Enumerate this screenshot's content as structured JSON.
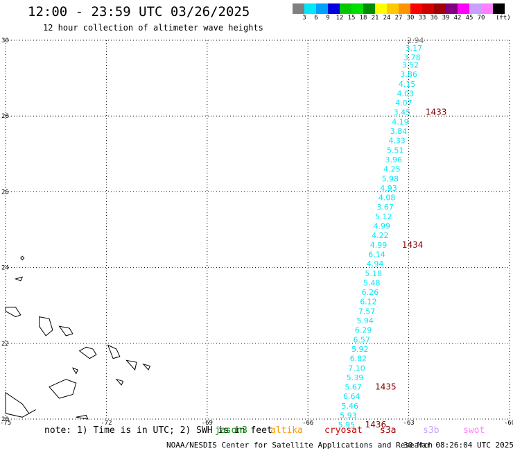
{
  "header": {
    "title": "12:00 - 23:59 UTC 03/26/2025",
    "subtitle": "12 hour collection of altimeter wave heights"
  },
  "colorbar": {
    "colors": [
      "#808080",
      "#00e8f8",
      "#00a0ff",
      "#0000e0",
      "#00c800",
      "#00e000",
      "#008c00",
      "#ffff00",
      "#ffc800",
      "#ff9600",
      "#ff0000",
      "#d00000",
      "#a00000",
      "#800080",
      "#ff00ff",
      "#c8a0ff",
      "#ff80ff",
      "#000000"
    ],
    "labels": [
      "3",
      "6",
      "9",
      "12",
      "15",
      "18",
      "21",
      "24",
      "27",
      "30",
      "33",
      "36",
      "39",
      "42",
      "45",
      "70"
    ],
    "unit": "(ft)"
  },
  "map": {
    "lat_labels": [
      "30",
      "28",
      "26",
      "24",
      "22",
      "20"
    ],
    "lon_labels": [
      "-75",
      "-72",
      "-69",
      "-66",
      "-63",
      "-60"
    ],
    "lat_range": [
      20,
      30
    ],
    "lon_range": [
      -75,
      -60
    ],
    "track_color": "#00e8f8",
    "pass_label_color": "#800000",
    "swh_points": [
      {
        "lat": 30.0,
        "lon": -62.8,
        "swh": "2.94",
        "color": "#808080"
      },
      {
        "lat": 29.8,
        "lon": -62.85,
        "swh": "3.17"
      },
      {
        "lat": 29.55,
        "lon": -62.9,
        "swh": "3.78"
      },
      {
        "lat": 29.35,
        "lon": -62.95,
        "swh": "3.52"
      },
      {
        "lat": 29.1,
        "lon": -63.0,
        "swh": "3.86"
      },
      {
        "lat": 28.85,
        "lon": -63.05,
        "swh": "4.15"
      },
      {
        "lat": 28.6,
        "lon": -63.1,
        "swh": "4.03"
      },
      {
        "lat": 28.35,
        "lon": -63.15,
        "swh": "4.07"
      },
      {
        "lat": 28.1,
        "lon": -63.2,
        "swh": "3.45"
      },
      {
        "lat": 27.85,
        "lon": -63.25,
        "swh": "4.19"
      },
      {
        "lat": 27.6,
        "lon": -63.3,
        "swh": "3.84"
      },
      {
        "lat": 27.35,
        "lon": -63.35,
        "swh": "4.33"
      },
      {
        "lat": 27.1,
        "lon": -63.4,
        "swh": "5.51"
      },
      {
        "lat": 26.85,
        "lon": -63.45,
        "swh": "3.96"
      },
      {
        "lat": 26.6,
        "lon": -63.5,
        "swh": "4.25"
      },
      {
        "lat": 26.35,
        "lon": -63.55,
        "swh": "5.98"
      },
      {
        "lat": 26.1,
        "lon": -63.6,
        "swh": "4.93"
      },
      {
        "lat": 25.85,
        "lon": -63.65,
        "swh": "4.08"
      },
      {
        "lat": 25.6,
        "lon": -63.7,
        "swh": "3.67"
      },
      {
        "lat": 25.35,
        "lon": -63.75,
        "swh": "5.12"
      },
      {
        "lat": 25.1,
        "lon": -63.8,
        "swh": "4.99"
      },
      {
        "lat": 24.85,
        "lon": -63.85,
        "swh": "4.22"
      },
      {
        "lat": 24.6,
        "lon": -63.9,
        "swh": "4.99"
      },
      {
        "lat": 24.35,
        "lon": -63.95,
        "swh": "6.14"
      },
      {
        "lat": 24.1,
        "lon": -64.0,
        "swh": "4.94"
      },
      {
        "lat": 23.85,
        "lon": -64.05,
        "swh": "5.18"
      },
      {
        "lat": 23.6,
        "lon": -64.1,
        "swh": "5.48"
      },
      {
        "lat": 23.35,
        "lon": -64.15,
        "swh": "6.26"
      },
      {
        "lat": 23.1,
        "lon": -64.2,
        "swh": "6.12"
      },
      {
        "lat": 22.85,
        "lon": -64.25,
        "swh": "7.57"
      },
      {
        "lat": 22.6,
        "lon": -64.3,
        "swh": "5.94"
      },
      {
        "lat": 22.35,
        "lon": -64.35,
        "swh": "6.29"
      },
      {
        "lat": 22.1,
        "lon": -64.4,
        "swh": "6.57"
      },
      {
        "lat": 21.85,
        "lon": -64.45,
        "swh": "5.92"
      },
      {
        "lat": 21.6,
        "lon": -64.5,
        "swh": "6.82"
      },
      {
        "lat": 21.35,
        "lon": -64.55,
        "swh": "7.10"
      },
      {
        "lat": 21.1,
        "lon": -64.6,
        "swh": "5.39"
      },
      {
        "lat": 20.85,
        "lon": -64.65,
        "swh": "5.67"
      },
      {
        "lat": 20.6,
        "lon": -64.7,
        "swh": "6.64"
      },
      {
        "lat": 20.35,
        "lon": -64.75,
        "swh": "5.46"
      },
      {
        "lat": 20.1,
        "lon": -64.8,
        "swh": "5.93"
      },
      {
        "lat": 19.85,
        "lon": -64.85,
        "swh": "5.95"
      }
    ],
    "pass_labels": [
      {
        "lat": 28.1,
        "lon": -62.5,
        "text": "1433"
      },
      {
        "lat": 24.6,
        "lon": -63.2,
        "text": "1434"
      },
      {
        "lat": 20.85,
        "lon": -64.0,
        "text": "1435"
      },
      {
        "lat": 19.85,
        "lon": -64.3,
        "text": "1436"
      }
    ],
    "land": [
      [
        [
          -74.5,
          24.2
        ],
        [
          -74.45,
          24.25
        ],
        [
          -74.5,
          24.3
        ],
        [
          -74.55,
          24.25
        ],
        [
          -74.5,
          24.2
        ]
      ],
      [
        [
          -74.7,
          23.7
        ],
        [
          -74.5,
          23.75
        ],
        [
          -74.55,
          23.65
        ],
        [
          -74.7,
          23.7
        ]
      ],
      [
        [
          -75.0,
          22.95
        ],
        [
          -74.7,
          22.95
        ],
        [
          -74.55,
          22.75
        ],
        [
          -74.7,
          22.7
        ],
        [
          -75.0,
          22.85
        ]
      ],
      [
        [
          -74.0,
          22.7
        ],
        [
          -73.7,
          22.65
        ],
        [
          -73.6,
          22.35
        ],
        [
          -73.8,
          22.2
        ],
        [
          -74.0,
          22.45
        ],
        [
          -74.0,
          22.7
        ]
      ],
      [
        [
          -73.4,
          22.45
        ],
        [
          -73.1,
          22.4
        ],
        [
          -73.0,
          22.25
        ],
        [
          -73.2,
          22.2
        ],
        [
          -73.4,
          22.45
        ]
      ],
      [
        [
          -72.8,
          21.8
        ],
        [
          -72.6,
          21.9
        ],
        [
          -72.4,
          21.85
        ],
        [
          -72.3,
          21.7
        ],
        [
          -72.5,
          21.6
        ],
        [
          -72.8,
          21.8
        ]
      ],
      [
        [
          -71.95,
          21.95
        ],
        [
          -71.7,
          21.85
        ],
        [
          -71.6,
          21.65
        ],
        [
          -71.8,
          21.6
        ],
        [
          -71.95,
          21.95
        ]
      ],
      [
        [
          -71.4,
          21.55
        ],
        [
          -71.1,
          21.5
        ],
        [
          -71.15,
          21.3
        ],
        [
          -71.4,
          21.55
        ]
      ],
      [
        [
          -70.9,
          21.45
        ],
        [
          -70.7,
          21.4
        ],
        [
          -70.75,
          21.3
        ],
        [
          -70.9,
          21.45
        ]
      ],
      [
        [
          -73.0,
          21.35
        ],
        [
          -72.85,
          21.3
        ],
        [
          -72.9,
          21.2
        ],
        [
          -73.0,
          21.35
        ]
      ],
      [
        [
          -71.7,
          21.05
        ],
        [
          -71.5,
          21.0
        ],
        [
          -71.55,
          20.9
        ],
        [
          -71.7,
          21.05
        ]
      ],
      [
        [
          -73.7,
          20.85
        ],
        [
          -73.2,
          21.05
        ],
        [
          -72.9,
          20.95
        ],
        [
          -73.0,
          20.65
        ],
        [
          -73.4,
          20.55
        ],
        [
          -73.7,
          20.85
        ]
      ],
      [
        [
          -75.0,
          20.7
        ],
        [
          -74.5,
          20.4
        ],
        [
          -74.3,
          20.15
        ],
        [
          -74.1,
          20.25
        ],
        [
          -74.5,
          20.05
        ],
        [
          -75.0,
          20.15
        ]
      ],
      [
        [
          -72.9,
          20.05
        ],
        [
          -72.6,
          20.1
        ],
        [
          -72.55,
          20.0
        ],
        [
          -72.9,
          20.05
        ]
      ]
    ]
  },
  "footer": {
    "note": "note: 1) Time is in UTC; 2) SWH is in feet",
    "satellites": [
      {
        "name": "jason3",
        "color": "#008c00"
      },
      {
        "name": "altika",
        "color": "#ff9600"
      },
      {
        "name": "cryosat",
        "color": "#d00000"
      },
      {
        "name": "s3a",
        "color": "#a00000"
      },
      {
        "name": "s3b",
        "color": "#c8a0ff"
      },
      {
        "name": "swot",
        "color": "#ff80ff"
      }
    ],
    "credit": "NOAA/NESDIS Center for Satellite Applications and Research",
    "timestamp": "30 Mar 08:26:04 UTC 2025"
  }
}
